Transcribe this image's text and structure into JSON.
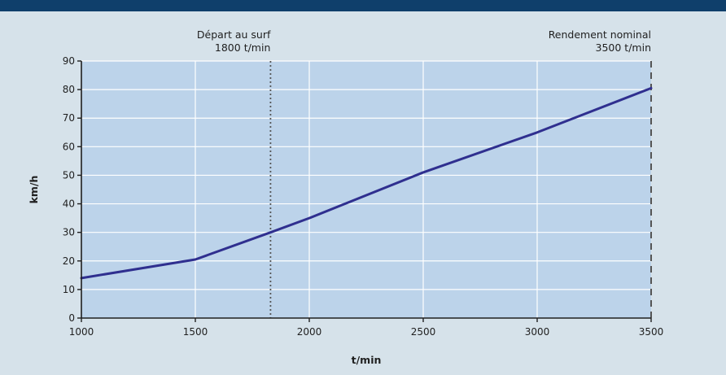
{
  "chart_data": {
    "type": "line",
    "title": "",
    "xlabel": "t/min",
    "ylabel": "km/h",
    "xlim": [
      1000,
      3500
    ],
    "ylim": [
      0,
      90
    ],
    "x_ticks": [
      1000,
      1500,
      2000,
      2500,
      3000,
      3500
    ],
    "y_ticks": [
      0,
      10,
      20,
      30,
      40,
      50,
      60,
      70,
      80,
      90
    ],
    "grid": true,
    "series": [
      {
        "x": [
          1000,
          1500,
          1830,
          2000,
          2500,
          3000,
          3500
        ],
        "y": [
          14,
          20.5,
          30,
          35,
          51,
          65,
          80.5
        ]
      }
    ],
    "annotations": [
      {
        "x": 1830,
        "style": "dotted",
        "line1": "Départ au surf",
        "line2": "1800 t/min"
      },
      {
        "x": 3500,
        "style": "dashed",
        "line1": "Rendement nominal",
        "line2": "3500 t/min"
      }
    ]
  },
  "colors": {
    "top_bar": "#0f3f6b",
    "background": "#d6e2ea",
    "plot_fill": "#bcd3ea",
    "grid": "#ffffff",
    "line": "#2f2f8f",
    "axis": "#1f1f1f",
    "annotation_line": "#555555"
  }
}
